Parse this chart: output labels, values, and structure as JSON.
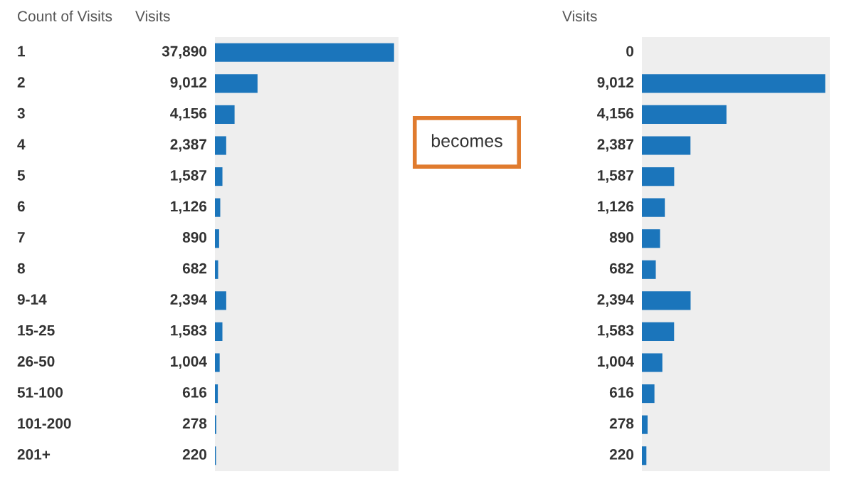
{
  "chart_data": [
    {
      "type": "bar",
      "orientation": "horizontal",
      "ylabel": "Count of Visits",
      "xlabel": "Visits",
      "categories": [
        "1",
        "2",
        "3",
        "4",
        "5",
        "6",
        "7",
        "8",
        "9-14",
        "15-25",
        "26-50",
        "51-100",
        "101-200",
        "201+"
      ],
      "values": [
        37890,
        9012,
        4156,
        2387,
        1587,
        1126,
        890,
        682,
        2394,
        1583,
        1004,
        616,
        278,
        220
      ],
      "value_labels": [
        "37,890",
        "9,012",
        "4,156",
        "2,387",
        "1,587",
        "1,126",
        "890",
        "682",
        "2,394",
        "1,583",
        "1,004",
        "616",
        "278",
        "220"
      ],
      "color": "#1b75bb",
      "annotations": [
        "becomes"
      ]
    },
    {
      "type": "bar",
      "orientation": "horizontal",
      "xlabel": "Visits",
      "categories": [
        null,
        null,
        null,
        null,
        null,
        null,
        null,
        null,
        null,
        null,
        null,
        null,
        null,
        null
      ],
      "values": [
        0,
        9012,
        4156,
        2387,
        1587,
        1126,
        890,
        682,
        2394,
        1583,
        1004,
        616,
        278,
        220
      ],
      "value_labels": [
        "0",
        "9,012",
        "4,156",
        "2,387",
        "1,587",
        "1,126",
        "890",
        "682",
        "2,394",
        "1,583",
        "1,004",
        "616",
        "278",
        "220"
      ],
      "color": "#1b75bb"
    }
  ]
}
